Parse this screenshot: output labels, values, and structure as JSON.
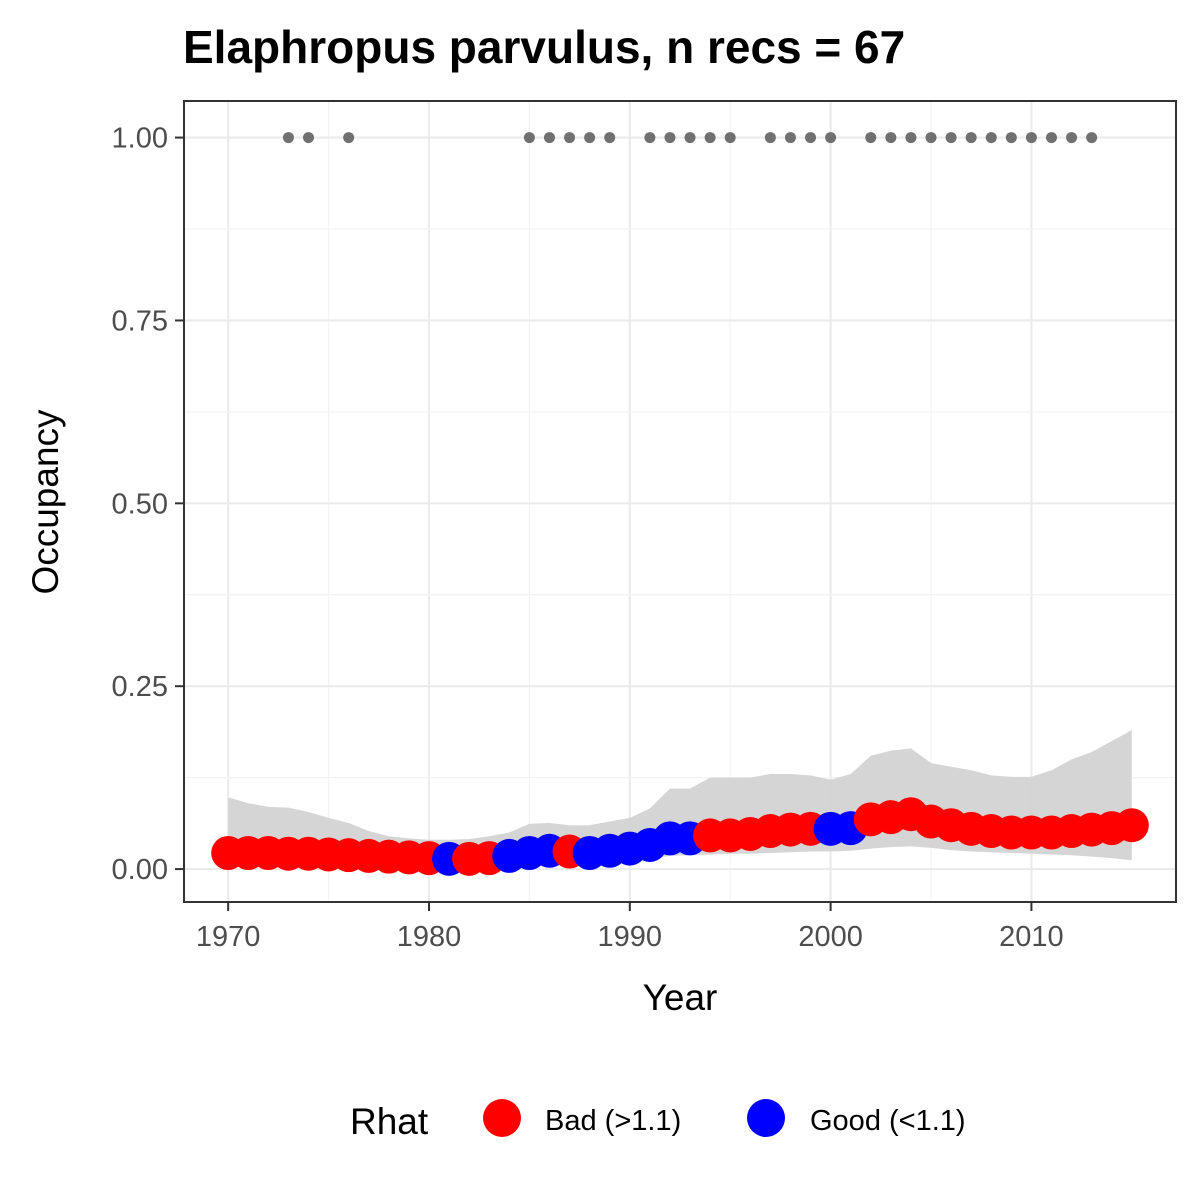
{
  "chart_data": {
    "type": "scatter",
    "title": "Elaphropus parvulus, n recs = 67",
    "xlabel": "Year",
    "ylabel": "Occupancy",
    "xlim": [
      1967.8,
      2017.2
    ],
    "ylim": [
      -0.045,
      1.05
    ],
    "x_ticks": [
      1970,
      1980,
      1990,
      2000,
      2010
    ],
    "x_tick_labels": [
      "1970",
      "1980",
      "1990",
      "2000",
      "2010"
    ],
    "y_ticks": [
      0,
      0.25,
      0.5,
      0.75,
      1.0
    ],
    "y_tick_labels": [
      "0.00",
      "0.25",
      "0.50",
      "0.75",
      "1.00"
    ],
    "grid": true,
    "legend": {
      "title": "Rhat",
      "position": "bottom",
      "entries": [
        {
          "label": "Bad (>1.1)",
          "color": "#ff0000"
        },
        {
          "label": "Good (<1.1)",
          "color": "#0000ff"
        }
      ]
    },
    "colors": {
      "bad": "#ff0000",
      "good": "#0000ff",
      "ribbon": "#d3d3d3",
      "records": "#707070"
    },
    "series": [
      {
        "name": "Rhat",
        "x": [
          1970,
          1971,
          1972,
          1973,
          1974,
          1975,
          1976,
          1977,
          1978,
          1979,
          1980,
          1981,
          1982,
          1983,
          1984,
          1985,
          1986,
          1987,
          1988,
          1989,
          1990,
          1991,
          1992,
          1993,
          1994,
          1995,
          1996,
          1997,
          1998,
          1999,
          2000,
          2001,
          2002,
          2003,
          2004,
          2005,
          2006,
          2007,
          2008,
          2009,
          2010,
          2011,
          2012,
          2013,
          2014,
          2015
        ],
        "y": [
          0.022,
          0.022,
          0.022,
          0.021,
          0.021,
          0.02,
          0.019,
          0.018,
          0.017,
          0.016,
          0.015,
          0.014,
          0.014,
          0.015,
          0.018,
          0.022,
          0.025,
          0.024,
          0.022,
          0.025,
          0.028,
          0.033,
          0.042,
          0.042,
          0.046,
          0.046,
          0.048,
          0.052,
          0.054,
          0.055,
          0.055,
          0.056,
          0.068,
          0.071,
          0.075,
          0.065,
          0.06,
          0.055,
          0.052,
          0.05,
          0.05,
          0.05,
          0.052,
          0.054,
          0.056,
          0.06
        ],
        "rhat_status": [
          "bad",
          "bad",
          "bad",
          "bad",
          "bad",
          "bad",
          "bad",
          "bad",
          "bad",
          "bad",
          "bad",
          "good",
          "bad",
          "bad",
          "good",
          "good",
          "good",
          "bad",
          "good",
          "good",
          "good",
          "good",
          "good",
          "good",
          "bad",
          "bad",
          "bad",
          "bad",
          "bad",
          "bad",
          "good",
          "good",
          "bad",
          "bad",
          "bad",
          "bad",
          "bad",
          "bad",
          "bad",
          "bad",
          "bad",
          "bad",
          "bad",
          "bad",
          "bad",
          "bad"
        ]
      }
    ],
    "ribbon": {
      "x": [
        1970,
        1971,
        1972,
        1973,
        1974,
        1975,
        1976,
        1977,
        1978,
        1979,
        1980,
        1981,
        1982,
        1983,
        1984,
        1985,
        1986,
        1987,
        1988,
        1989,
        1990,
        1991,
        1992,
        1993,
        1994,
        1995,
        1996,
        1997,
        1998,
        1999,
        2000,
        2001,
        2002,
        2003,
        2004,
        2005,
        2006,
        2007,
        2008,
        2009,
        2010,
        2011,
        2012,
        2013,
        2014,
        2015
      ],
      "lower": [
        0.008,
        0.008,
        0.007,
        0.007,
        0.006,
        0.006,
        0.005,
        0.005,
        0.004,
        0.004,
        0.003,
        0.004,
        0.004,
        0.005,
        0.006,
        0.008,
        0.01,
        0.01,
        0.01,
        0.011,
        0.012,
        0.014,
        0.018,
        0.019,
        0.02,
        0.021,
        0.021,
        0.022,
        0.023,
        0.024,
        0.024,
        0.025,
        0.028,
        0.03,
        0.031,
        0.029,
        0.026,
        0.024,
        0.023,
        0.022,
        0.021,
        0.02,
        0.019,
        0.017,
        0.015,
        0.012
      ],
      "upper": [
        0.098,
        0.09,
        0.085,
        0.084,
        0.078,
        0.07,
        0.063,
        0.052,
        0.045,
        0.042,
        0.04,
        0.04,
        0.041,
        0.045,
        0.05,
        0.062,
        0.063,
        0.06,
        0.06,
        0.065,
        0.07,
        0.083,
        0.11,
        0.11,
        0.125,
        0.125,
        0.125,
        0.13,
        0.13,
        0.128,
        0.122,
        0.13,
        0.155,
        0.162,
        0.165,
        0.145,
        0.14,
        0.135,
        0.128,
        0.126,
        0.126,
        0.135,
        0.15,
        0.16,
        0.175,
        0.19
      ]
    },
    "records": {
      "y": 1.0,
      "x": [
        1973,
        1974,
        1976,
        1985,
        1986,
        1987,
        1988,
        1989,
        1991,
        1992,
        1993,
        1994,
        1995,
        1997,
        1998,
        1999,
        2000,
        2002,
        2003,
        2004,
        2005,
        2006,
        2007,
        2008,
        2009,
        2010,
        2011,
        2012,
        2013
      ]
    }
  }
}
